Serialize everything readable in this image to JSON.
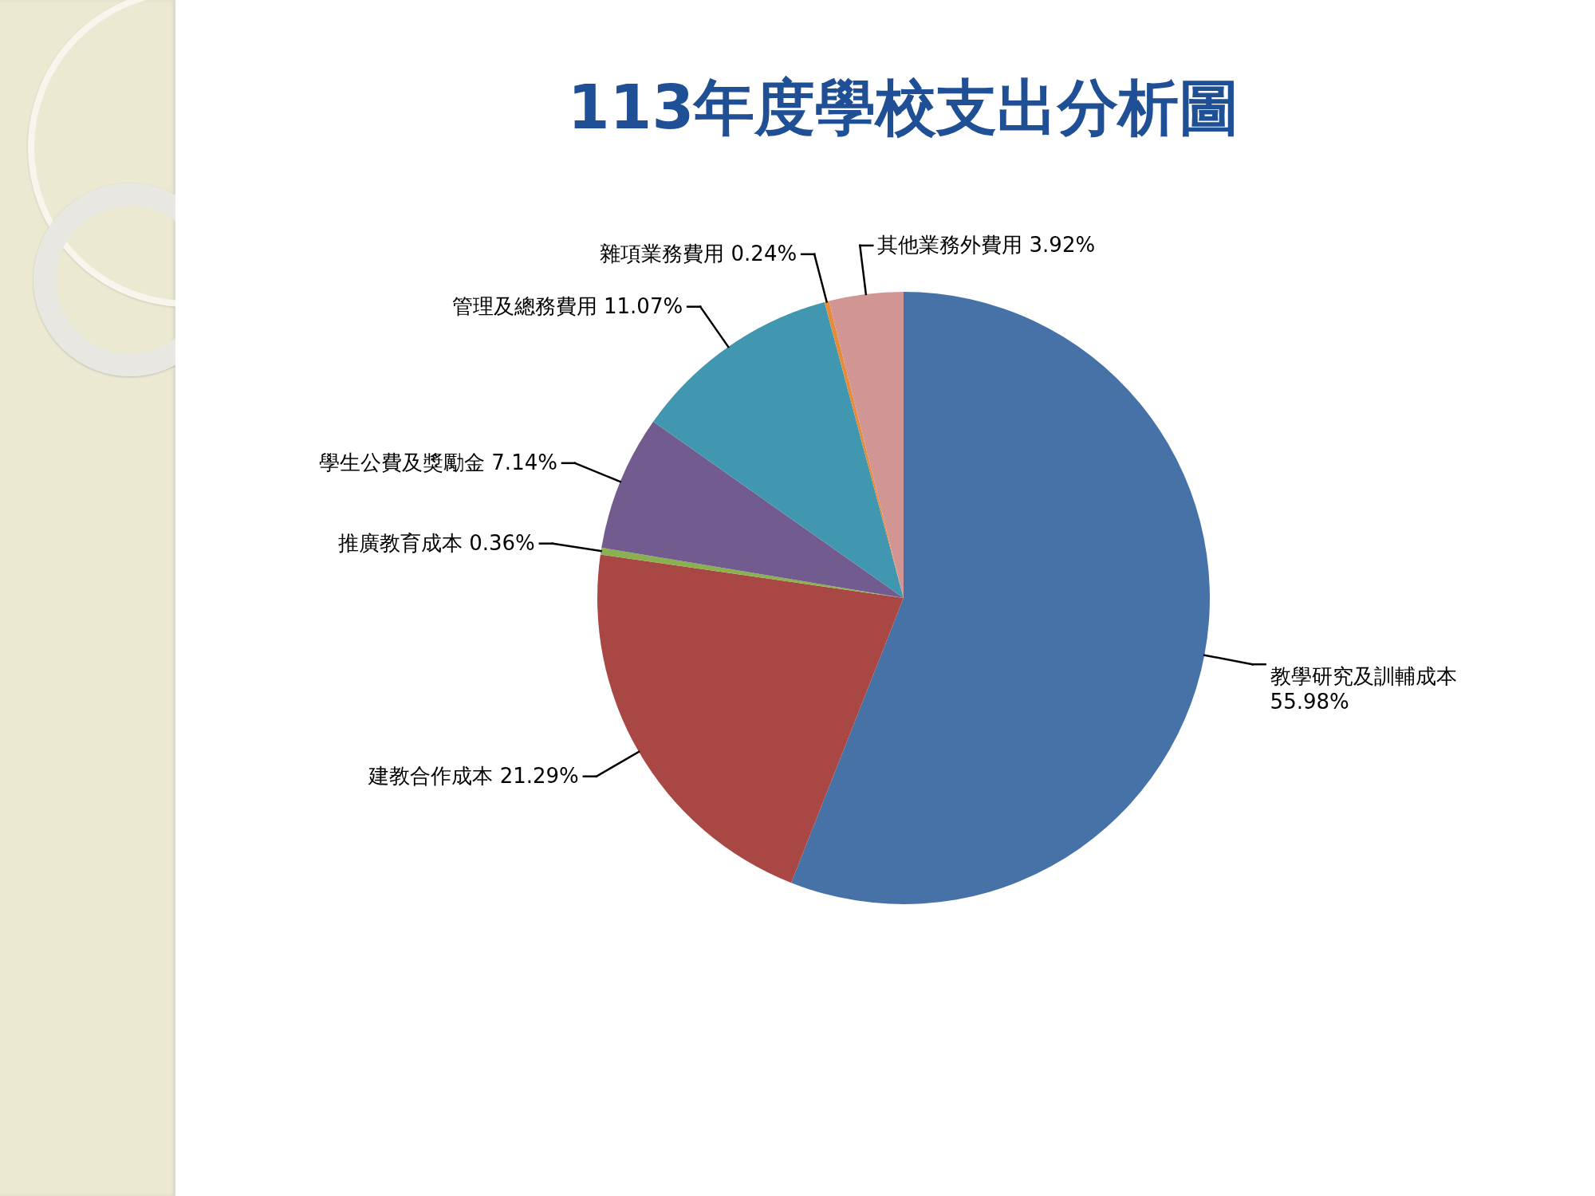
{
  "chart_data": {
    "type": "pie",
    "title": "113年度學校支出分析圖",
    "categories": [
      "教學研究及訓輔成本",
      "建教合作成本",
      "推廣教育成本",
      "學生公費及獎勵金",
      "管理及總務費用",
      "雜項業務費用",
      "其他業務外費用"
    ],
    "values": [
      55.98,
      21.29,
      0.36,
      7.14,
      11.07,
      0.24,
      3.92
    ],
    "value_labels": [
      "55.98%",
      "21.29%",
      "0.36%",
      "7.14%",
      "11.07%",
      "0.24%",
      "3.92%"
    ],
    "colors": [
      "#4672a8",
      "#a94744",
      "#8bb050",
      "#725b8e",
      "#4197af",
      "#e68b3a",
      "#d19593"
    ]
  }
}
